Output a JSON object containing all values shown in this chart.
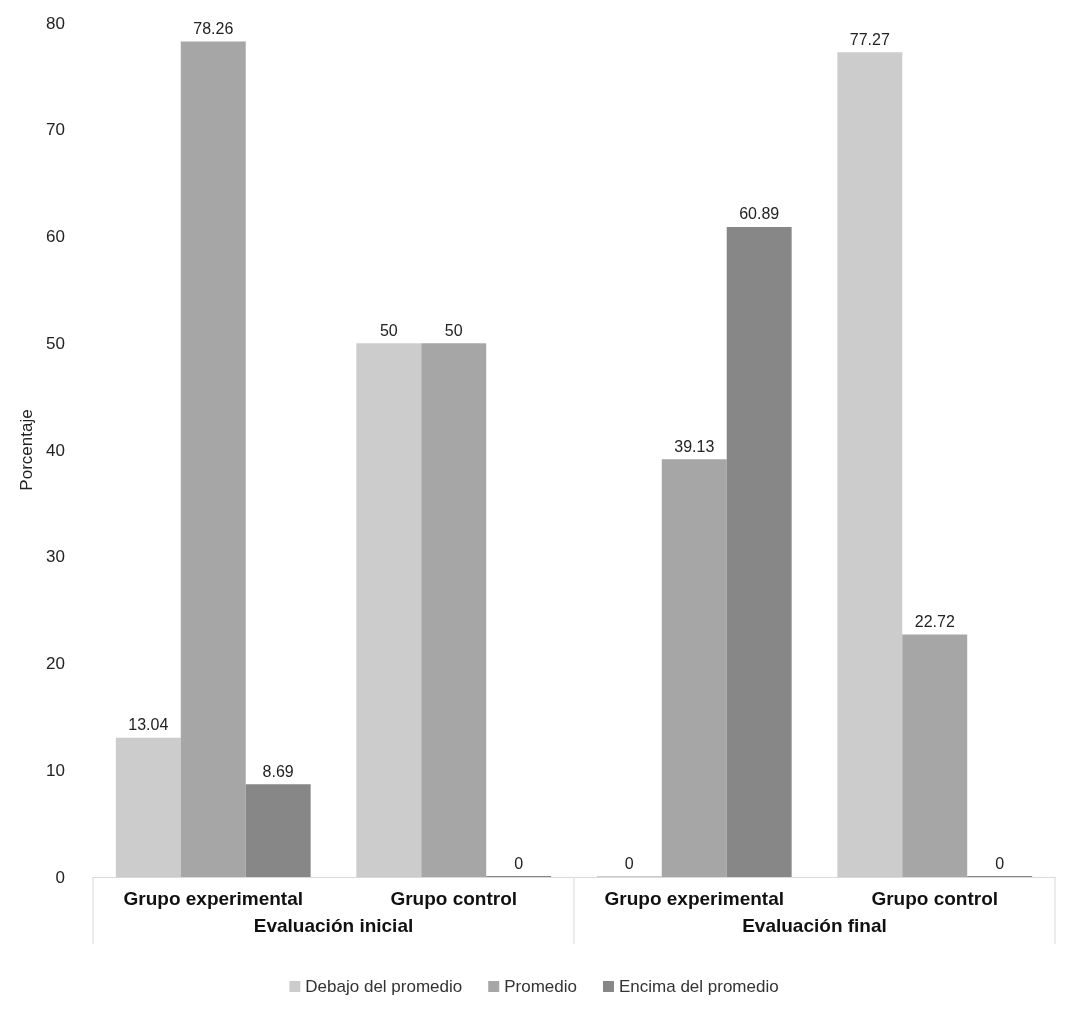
{
  "chart_data": {
    "type": "bar",
    "ylabel": "Porcentaje",
    "categories": [
      "Grupo experimental",
      "Grupo control",
      "Grupo experimental",
      "Grupo control"
    ],
    "annotations": [
      "Evaluación inicial",
      "Evaluación final"
    ],
    "series": [
      {
        "name": "Debajo del promedio",
        "color": "#cccccc",
        "values": [
          13.04,
          50,
          0,
          77.27
        ]
      },
      {
        "name": "Promedio",
        "color": "#a6a6a6",
        "values": [
          78.26,
          50,
          39.13,
          22.72
        ]
      },
      {
        "name": "Encima del promedio",
        "color": "#878787",
        "values": [
          8.69,
          0,
          60.89,
          0
        ]
      }
    ],
    "ylim": [
      0,
      80
    ],
    "yticks": [
      0,
      10,
      20,
      30,
      40,
      50,
      60,
      70,
      80
    ],
    "data_labels": true,
    "legend": "bottom",
    "grid": false
  }
}
